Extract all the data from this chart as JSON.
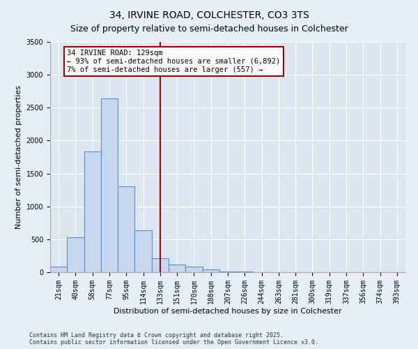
{
  "title": "34, IRVINE ROAD, COLCHESTER, CO3 3TS",
  "subtitle": "Size of property relative to semi-detached houses in Colchester",
  "xlabel": "Distribution of semi-detached houses by size in Colchester",
  "ylabel": "Number of semi-detached properties",
  "categories": [
    "21sqm",
    "40sqm",
    "58sqm",
    "77sqm",
    "95sqm",
    "114sqm",
    "133sqm",
    "151sqm",
    "170sqm",
    "188sqm",
    "207sqm",
    "226sqm",
    "244sqm",
    "263sqm",
    "281sqm",
    "300sqm",
    "319sqm",
    "337sqm",
    "356sqm",
    "374sqm",
    "393sqm"
  ],
  "values": [
    80,
    530,
    1840,
    2640,
    1300,
    640,
    210,
    120,
    80,
    40,
    15,
    8,
    4,
    2,
    1,
    0,
    0,
    0,
    0,
    0,
    0
  ],
  "bar_color": "#c5d8ed",
  "bar_edge_color": "#5b8fc9",
  "vline_x_index": 6.0,
  "vline_color": "#aa0000",
  "annotation_title": "34 IRVINE ROAD: 129sqm",
  "annotation_line1": "← 93% of semi-detached houses are smaller (6,892)",
  "annotation_line2": "7% of semi-detached houses are larger (557) →",
  "annotation_box_color": "#aa0000",
  "ylim": [
    0,
    3500
  ],
  "yticks": [
    0,
    500,
    1000,
    1500,
    2000,
    2500,
    3000,
    3500
  ],
  "footnote1": "Contains HM Land Registry data © Crown copyright and database right 2025.",
  "footnote2": "Contains public sector information licensed under the Open Government Licence v3.0.",
  "title_fontsize": 10,
  "subtitle_fontsize": 9,
  "axis_label_fontsize": 8,
  "tick_fontsize": 7,
  "background_color": "#e8eef5",
  "plot_bg_color": "#dce6f0"
}
